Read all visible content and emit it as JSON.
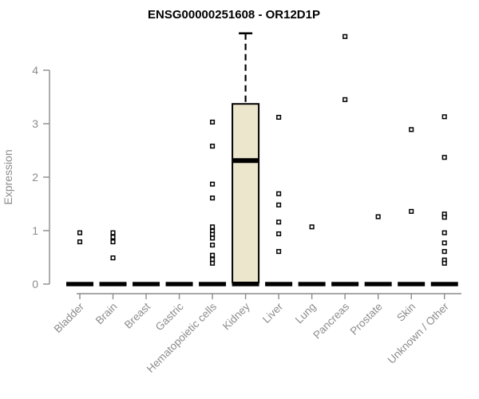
{
  "chart_data": {
    "type": "boxplot",
    "title": "ENSG00000251608 - OR12D1P",
    "ylabel": "Expression",
    "xlabel": "",
    "ylim": [
      0,
      4.8
    ],
    "yticks": [
      0,
      1,
      2,
      3,
      4
    ],
    "grid": false,
    "legend": null,
    "categories": [
      "Bladder",
      "Brain",
      "Breast",
      "Gastric",
      "Hematopoietic cells",
      "Kidney",
      "Liver",
      "Lung",
      "Pancreas",
      "Prostate",
      "Skin",
      "Unknown / Other"
    ],
    "series": [
      {
        "category": "Bladder",
        "median": 0,
        "outliers": [
          0.96,
          0.79
        ]
      },
      {
        "category": "Brain",
        "median": 0,
        "outliers": [
          0.96,
          0.88,
          0.79,
          0.49
        ]
      },
      {
        "category": "Breast",
        "median": 0,
        "outliers": []
      },
      {
        "category": "Gastric",
        "median": 0,
        "outliers": []
      },
      {
        "category": "Hematopoietic cells",
        "median": 0,
        "outliers": [
          3.03,
          2.58,
          1.87,
          1.61,
          1.07,
          0.99,
          0.93,
          0.86,
          0.73,
          0.54,
          0.46,
          0.39
        ]
      },
      {
        "category": "Kidney",
        "median": 2.31,
        "box": {
          "q1": 0.03,
          "q3": 3.37,
          "whisker_high": 4.69
        },
        "outliers": []
      },
      {
        "category": "Liver",
        "median": 0,
        "outliers": [
          3.12,
          1.69,
          1.48,
          1.16,
          0.94,
          0.61
        ]
      },
      {
        "category": "Lung",
        "median": 0,
        "outliers": [
          1.07
        ]
      },
      {
        "category": "Pancreas",
        "median": 0,
        "outliers": [
          4.63,
          3.45
        ]
      },
      {
        "category": "Prostate",
        "median": 0,
        "outliers": [
          1.26
        ]
      },
      {
        "category": "Skin",
        "median": 0,
        "outliers": [
          2.89,
          1.36
        ]
      },
      {
        "category": "Unknown / Other",
        "median": 0,
        "outliers": [
          3.13,
          2.37,
          1.31,
          1.25,
          0.96,
          0.77,
          0.61,
          0.45,
          0.39
        ]
      }
    ],
    "colors": {
      "box_fill": "#ECE6CD",
      "data": "#000000",
      "axis": "#8C8C8C",
      "title": "#000000",
      "background": "#FFFFFF"
    }
  }
}
